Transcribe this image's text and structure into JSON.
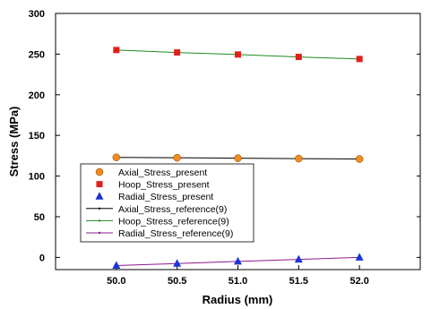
{
  "chart_data": {
    "type": "scatter",
    "title": "",
    "xlabel": "Radius (mm)",
    "ylabel": "Stress (MPa)",
    "xlim": [
      49.5,
      52.5
    ],
    "ylim": [
      -15,
      300
    ],
    "x_ticks": [
      50.0,
      50.5,
      51.0,
      51.5,
      52.0
    ],
    "x_tick_labels": [
      "50.0",
      "50.5",
      "51.0",
      "51.5",
      "52.0"
    ],
    "y_ticks": [
      0,
      50,
      100,
      150,
      200,
      250,
      300
    ],
    "y_tick_labels": [
      "0",
      "50",
      "100",
      "150",
      "200",
      "250",
      "300"
    ],
    "grid": false,
    "legend_position": "lower-left",
    "series": [
      {
        "name": "Axial_Stress_present",
        "kind": "marker",
        "marker": "circle",
        "color": "#F28C1E",
        "x": [
          50.0,
          50.5,
          51.0,
          51.5,
          52.0
        ],
        "y": [
          123,
          122.5,
          122,
          121.5,
          121
        ]
      },
      {
        "name": "Hoop_Stress_present",
        "kind": "marker",
        "marker": "square",
        "color": "#E0201B",
        "x": [
          50.0,
          50.5,
          51.0,
          51.5,
          52.0
        ],
        "y": [
          255,
          252,
          249.5,
          246.5,
          244
        ]
      },
      {
        "name": "Radial_Stress_present",
        "kind": "marker",
        "marker": "triangle",
        "color": "#1A34D6",
        "x": [
          50.0,
          50.5,
          51.0,
          51.5,
          52.0
        ],
        "y": [
          -10,
          -7.5,
          -5,
          -2.5,
          0
        ]
      },
      {
        "name": "Axial_Stress_reference(9)",
        "kind": "line",
        "color": "#000000",
        "x": [
          50.0,
          50.5,
          51.0,
          51.5,
          52.0
        ],
        "y": [
          123,
          122.5,
          122,
          121.5,
          121
        ]
      },
      {
        "name": "Hoop_Stress_reference(9)",
        "kind": "line",
        "color": "#1E8A1E",
        "x": [
          50.0,
          50.5,
          51.0,
          51.5,
          52.0
        ],
        "y": [
          255,
          252,
          249.5,
          246.5,
          244
        ]
      },
      {
        "name": "Radial_Stress_reference(9)",
        "kind": "line",
        "color": "#8E1A8E",
        "x": [
          50.0,
          50.5,
          51.0,
          51.5,
          52.0
        ],
        "y": [
          -10,
          -7.5,
          -5,
          -2.5,
          0
        ]
      }
    ]
  }
}
